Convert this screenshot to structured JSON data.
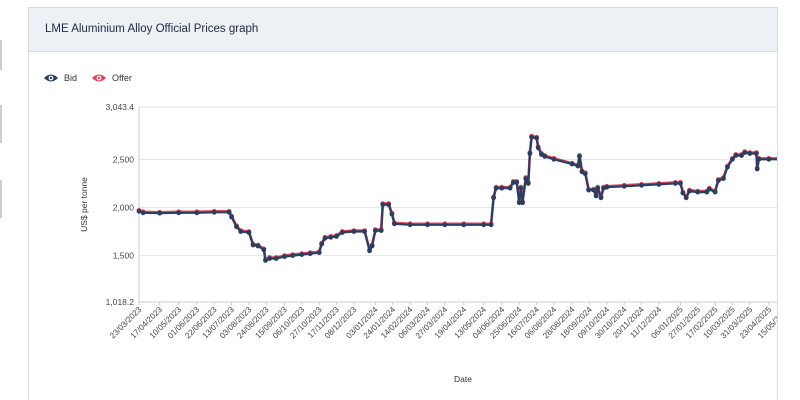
{
  "panel": {
    "title": "LME Aluminium Alloy Official Prices graph"
  },
  "legend": [
    {
      "name": "Bid",
      "color": "#2a3f5f",
      "icon": "eye-icon"
    },
    {
      "name": "Offer",
      "color": "#e0445a",
      "icon": "eye-icon"
    }
  ],
  "chart_data": {
    "type": "line",
    "xlabel": "Date",
    "ylabel": "US$ per tonne",
    "ylim": [
      1018.2,
      3043.4
    ],
    "y_ticks": [
      "3,043.4",
      "2,500",
      "2,000",
      "1,500",
      "1,018.2"
    ],
    "y_tick_values": [
      3043.4,
      2500,
      2000,
      1500,
      1018.2
    ],
    "x_ticks": [
      "23/03/2023",
      "17/04/2023",
      "10/05/2023",
      "01/06/2023",
      "22/06/2023",
      "13/07/2023",
      "03/08/2023",
      "24/08/2023",
      "15/09/2023",
      "06/10/2023",
      "27/10/2023",
      "17/11/2023",
      "08/12/2023",
      "03/01/2024",
      "24/01/2024",
      "14/02/2024",
      "06/03/2024",
      "27/03/2024",
      "19/04/2024",
      "13/05/2024",
      "04/06/2024",
      "25/06/2024",
      "16/07/2024",
      "06/08/2024",
      "28/08/2024",
      "18/09/2024",
      "09/10/2024",
      "30/10/2024",
      "20/11/2024",
      "11/12/2024",
      "06/01/2025",
      "27/01/2025",
      "17/02/2025",
      "10/03/2025",
      "31/03/2025",
      "23/04/2025",
      "15/05/2025"
    ],
    "x_range": [
      "23/03/2023",
      "15/05/2025"
    ],
    "grid": true,
    "legend_position": "top-left",
    "series": [
      {
        "name": "Bid",
        "color": "#2a3f5f",
        "points": [
          [
            "23/03/2023",
            1960
          ],
          [
            "28/03/2023",
            1945
          ],
          [
            "17/04/2023",
            1940
          ],
          [
            "10/05/2023",
            1945
          ],
          [
            "01/06/2023",
            1945
          ],
          [
            "22/06/2023",
            1950
          ],
          [
            "10/07/2023",
            1950
          ],
          [
            "13/07/2023",
            1900
          ],
          [
            "19/07/2023",
            1800
          ],
          [
            "24/07/2023",
            1750
          ],
          [
            "03/08/2023",
            1740
          ],
          [
            "08/08/2023",
            1610
          ],
          [
            "14/08/2023",
            1600
          ],
          [
            "21/08/2023",
            1560
          ],
          [
            "23/08/2023",
            1450
          ],
          [
            "28/08/2023",
            1470
          ],
          [
            "05/09/2023",
            1470
          ],
          [
            "15/09/2023",
            1490
          ],
          [
            "25/09/2023",
            1500
          ],
          [
            "06/10/2023",
            1510
          ],
          [
            "16/10/2023",
            1520
          ],
          [
            "27/10/2023",
            1530
          ],
          [
            "30/10/2023",
            1620
          ],
          [
            "03/11/2023",
            1680
          ],
          [
            "10/11/2023",
            1690
          ],
          [
            "17/11/2023",
            1700
          ],
          [
            "24/11/2023",
            1740
          ],
          [
            "08/12/2023",
            1750
          ],
          [
            "21/12/2023",
            1750
          ],
          [
            "27/12/2023",
            1550
          ],
          [
            "30/12/2023",
            1600
          ],
          [
            "03/01/2024",
            1760
          ],
          [
            "10/01/2024",
            1760
          ],
          [
            "12/01/2024",
            2030
          ],
          [
            "19/01/2024",
            2030
          ],
          [
            "23/01/2024",
            1930
          ],
          [
            "26/01/2024",
            1830
          ],
          [
            "14/02/2024",
            1820
          ],
          [
            "06/03/2024",
            1820
          ],
          [
            "27/03/2024",
            1820
          ],
          [
            "19/04/2024",
            1820
          ],
          [
            "13/05/2024",
            1820
          ],
          [
            "22/05/2024",
            1820
          ],
          [
            "25/05/2024",
            2100
          ],
          [
            "28/05/2024",
            2200
          ],
          [
            "04/06/2024",
            2200
          ],
          [
            "14/06/2024",
            2200
          ],
          [
            "18/06/2024",
            2260
          ],
          [
            "22/06/2024",
            2260
          ],
          [
            "25/06/2024",
            2050
          ],
          [
            "27/06/2024",
            2200
          ],
          [
            "29/06/2024",
            2050
          ],
          [
            "03/07/2024",
            2300
          ],
          [
            "06/07/2024",
            2250
          ],
          [
            "08/07/2024",
            2560
          ],
          [
            "10/07/2024",
            2730
          ],
          [
            "16/07/2024",
            2720
          ],
          [
            "18/07/2024",
            2620
          ],
          [
            "22/07/2024",
            2550
          ],
          [
            "26/07/2024",
            2530
          ],
          [
            "06/08/2024",
            2500
          ],
          [
            "28/08/2024",
            2450
          ],
          [
            "04/09/2024",
            2430
          ],
          [
            "06/09/2024",
            2530
          ],
          [
            "09/09/2024",
            2370
          ],
          [
            "13/09/2024",
            2350
          ],
          [
            "17/09/2024",
            2180
          ],
          [
            "23/09/2024",
            2180
          ],
          [
            "26/09/2024",
            2120
          ],
          [
            "28/09/2024",
            2200
          ],
          [
            "02/10/2024",
            2100
          ],
          [
            "05/10/2024",
            2200
          ],
          [
            "09/10/2024",
            2210
          ],
          [
            "30/10/2024",
            2220
          ],
          [
            "20/11/2024",
            2230
          ],
          [
            "11/12/2024",
            2240
          ],
          [
            "31/12/2024",
            2250
          ],
          [
            "06/01/2025",
            2250
          ],
          [
            "09/01/2025",
            2150
          ],
          [
            "13/01/2025",
            2100
          ],
          [
            "17/01/2025",
            2170
          ],
          [
            "27/01/2025",
            2160
          ],
          [
            "07/02/2025",
            2160
          ],
          [
            "10/02/2025",
            2190
          ],
          [
            "17/02/2025",
            2160
          ],
          [
            "21/02/2025",
            2280
          ],
          [
            "27/02/2025",
            2300
          ],
          [
            "04/03/2025",
            2420
          ],
          [
            "10/03/2025",
            2500
          ],
          [
            "14/03/2025",
            2540
          ],
          [
            "21/03/2025",
            2540
          ],
          [
            "25/03/2025",
            2570
          ],
          [
            "31/03/2025",
            2560
          ],
          [
            "08/04/2025",
            2560
          ],
          [
            "09/04/2025",
            2400
          ],
          [
            "11/04/2025",
            2500
          ],
          [
            "23/04/2025",
            2500
          ],
          [
            "15/05/2025",
            2500
          ],
          [
            "29/05/2025",
            2500
          ]
        ]
      },
      {
        "name": "Offer",
        "color": "#e0445a",
        "points": [
          [
            "23/03/2023",
            1970
          ],
          [
            "28/03/2023",
            1955
          ],
          [
            "17/04/2023",
            1950
          ],
          [
            "10/05/2023",
            1955
          ],
          [
            "01/06/2023",
            1955
          ],
          [
            "22/06/2023",
            1960
          ],
          [
            "10/07/2023",
            1960
          ],
          [
            "13/07/2023",
            1910
          ],
          [
            "19/07/2023",
            1810
          ],
          [
            "24/07/2023",
            1760
          ],
          [
            "03/08/2023",
            1750
          ],
          [
            "08/08/2023",
            1620
          ],
          [
            "14/08/2023",
            1610
          ],
          [
            "21/08/2023",
            1570
          ],
          [
            "23/08/2023",
            1460
          ],
          [
            "28/08/2023",
            1480
          ],
          [
            "05/09/2023",
            1480
          ],
          [
            "15/09/2023",
            1500
          ],
          [
            "25/09/2023",
            1510
          ],
          [
            "06/10/2023",
            1520
          ],
          [
            "16/10/2023",
            1530
          ],
          [
            "27/10/2023",
            1540
          ],
          [
            "30/10/2023",
            1630
          ],
          [
            "03/11/2023",
            1690
          ],
          [
            "10/11/2023",
            1700
          ],
          [
            "17/11/2023",
            1710
          ],
          [
            "24/11/2023",
            1750
          ],
          [
            "08/12/2023",
            1760
          ],
          [
            "21/12/2023",
            1760
          ],
          [
            "27/12/2023",
            1560
          ],
          [
            "30/12/2023",
            1610
          ],
          [
            "03/01/2024",
            1770
          ],
          [
            "10/01/2024",
            1770
          ],
          [
            "12/01/2024",
            2040
          ],
          [
            "19/01/2024",
            2040
          ],
          [
            "23/01/2024",
            1940
          ],
          [
            "26/01/2024",
            1840
          ],
          [
            "14/02/2024",
            1830
          ],
          [
            "06/03/2024",
            1830
          ],
          [
            "27/03/2024",
            1830
          ],
          [
            "19/04/2024",
            1830
          ],
          [
            "13/05/2024",
            1830
          ],
          [
            "22/05/2024",
            1830
          ],
          [
            "25/05/2024",
            2110
          ],
          [
            "28/05/2024",
            2210
          ],
          [
            "04/06/2024",
            2210
          ],
          [
            "14/06/2024",
            2210
          ],
          [
            "18/06/2024",
            2270
          ],
          [
            "22/06/2024",
            2270
          ],
          [
            "25/06/2024",
            2060
          ],
          [
            "27/06/2024",
            2210
          ],
          [
            "29/06/2024",
            2060
          ],
          [
            "03/07/2024",
            2310
          ],
          [
            "06/07/2024",
            2260
          ],
          [
            "08/07/2024",
            2570
          ],
          [
            "10/07/2024",
            2740
          ],
          [
            "16/07/2024",
            2730
          ],
          [
            "18/07/2024",
            2630
          ],
          [
            "22/07/2024",
            2560
          ],
          [
            "26/07/2024",
            2540
          ],
          [
            "06/08/2024",
            2510
          ],
          [
            "28/08/2024",
            2460
          ],
          [
            "04/09/2024",
            2440
          ],
          [
            "06/09/2024",
            2540
          ],
          [
            "09/09/2024",
            2380
          ],
          [
            "13/09/2024",
            2360
          ],
          [
            "17/09/2024",
            2190
          ],
          [
            "23/09/2024",
            2190
          ],
          [
            "26/09/2024",
            2130
          ],
          [
            "28/09/2024",
            2210
          ],
          [
            "02/10/2024",
            2110
          ],
          [
            "05/10/2024",
            2210
          ],
          [
            "09/10/2024",
            2220
          ],
          [
            "30/10/2024",
            2230
          ],
          [
            "20/11/2024",
            2240
          ],
          [
            "11/12/2024",
            2250
          ],
          [
            "31/12/2024",
            2260
          ],
          [
            "06/01/2025",
            2260
          ],
          [
            "09/01/2025",
            2160
          ],
          [
            "13/01/2025",
            2110
          ],
          [
            "17/01/2025",
            2180
          ],
          [
            "27/01/2025",
            2170
          ],
          [
            "07/02/2025",
            2170
          ],
          [
            "10/02/2025",
            2200
          ],
          [
            "17/02/2025",
            2170
          ],
          [
            "21/02/2025",
            2290
          ],
          [
            "27/02/2025",
            2310
          ],
          [
            "04/03/2025",
            2430
          ],
          [
            "10/03/2025",
            2510
          ],
          [
            "14/03/2025",
            2550
          ],
          [
            "21/03/2025",
            2550
          ],
          [
            "25/03/2025",
            2580
          ],
          [
            "31/03/2025",
            2570
          ],
          [
            "08/04/2025",
            2570
          ],
          [
            "09/04/2025",
            2410
          ],
          [
            "11/04/2025",
            2510
          ],
          [
            "23/04/2025",
            2510
          ],
          [
            "15/05/2025",
            2510
          ],
          [
            "29/05/2025",
            2510
          ]
        ]
      }
    ]
  }
}
